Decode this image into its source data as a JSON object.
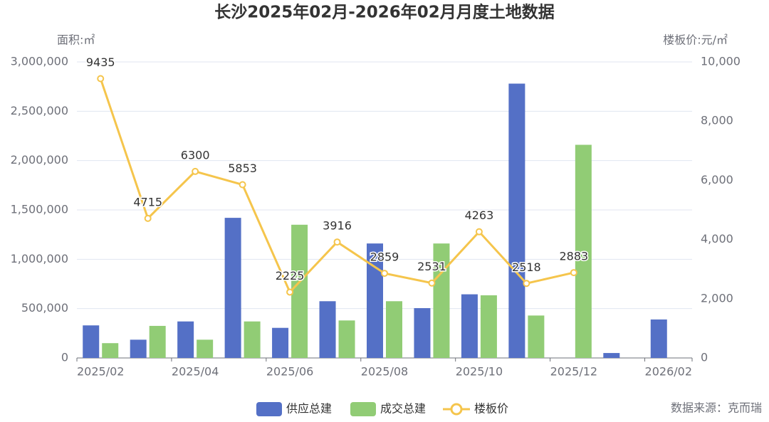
{
  "chart_data": {
    "type": "bar_line",
    "title": "长沙2025年02月-2026年02月月度土地数据",
    "y_label": "面积:㎡",
    "y2_label": "楼板价:元/㎡",
    "source": "数据来源：克而瑞",
    "categories": [
      "2025/02",
      null,
      "2025/04",
      null,
      "2025/06",
      null,
      "2025/08",
      null,
      "2025/10",
      null,
      "2025/12",
      null,
      "2026/02"
    ],
    "series": [
      {
        "name": "供应总建",
        "type": "bar",
        "color": "#5470c6",
        "values": [
          330000,
          185000,
          370000,
          1420000,
          305000,
          575000,
          1160000,
          505000,
          645000,
          2780000,
          null,
          50000,
          390000
        ]
      },
      {
        "name": "成交总建",
        "type": "bar",
        "color": "#91cc75",
        "values": [
          150000,
          325000,
          185000,
          370000,
          1350000,
          380000,
          575000,
          1160000,
          635000,
          430000,
          2160000,
          null,
          null
        ]
      },
      {
        "name": "楼板价",
        "type": "line",
        "axis": "y2",
        "color": "#f5c54c",
        "values": [
          9435,
          4715,
          6300,
          5853,
          2225,
          3916,
          2859,
          2531,
          4263,
          2518,
          2883,
          null,
          null
        ]
      }
    ],
    "ylim": [
      0,
      3000000
    ],
    "yticks": [
      0,
      {
        "value": 500000,
        "label": "500,000"
      },
      {
        "value": 1000000,
        "label": "1,000,000"
      },
      {
        "value": 1500000,
        "label": "1,500,000"
      },
      {
        "value": 2000000,
        "label": "2,000,000"
      },
      {
        "value": 2500000,
        "label": "2,500,000"
      },
      {
        "value": 3000000,
        "label": "3,000,000"
      }
    ],
    "y2lim": [
      0,
      10000
    ],
    "y2ticks": [
      0,
      {
        "value": 2000,
        "label": "2,000"
      },
      {
        "value": 4000,
        "label": "4,000"
      },
      {
        "value": 6000,
        "label": "6,000"
      },
      {
        "value": 8000,
        "label": "8,000"
      },
      {
        "value": 10000,
        "label": "10,000"
      }
    ],
    "grid": true
  }
}
